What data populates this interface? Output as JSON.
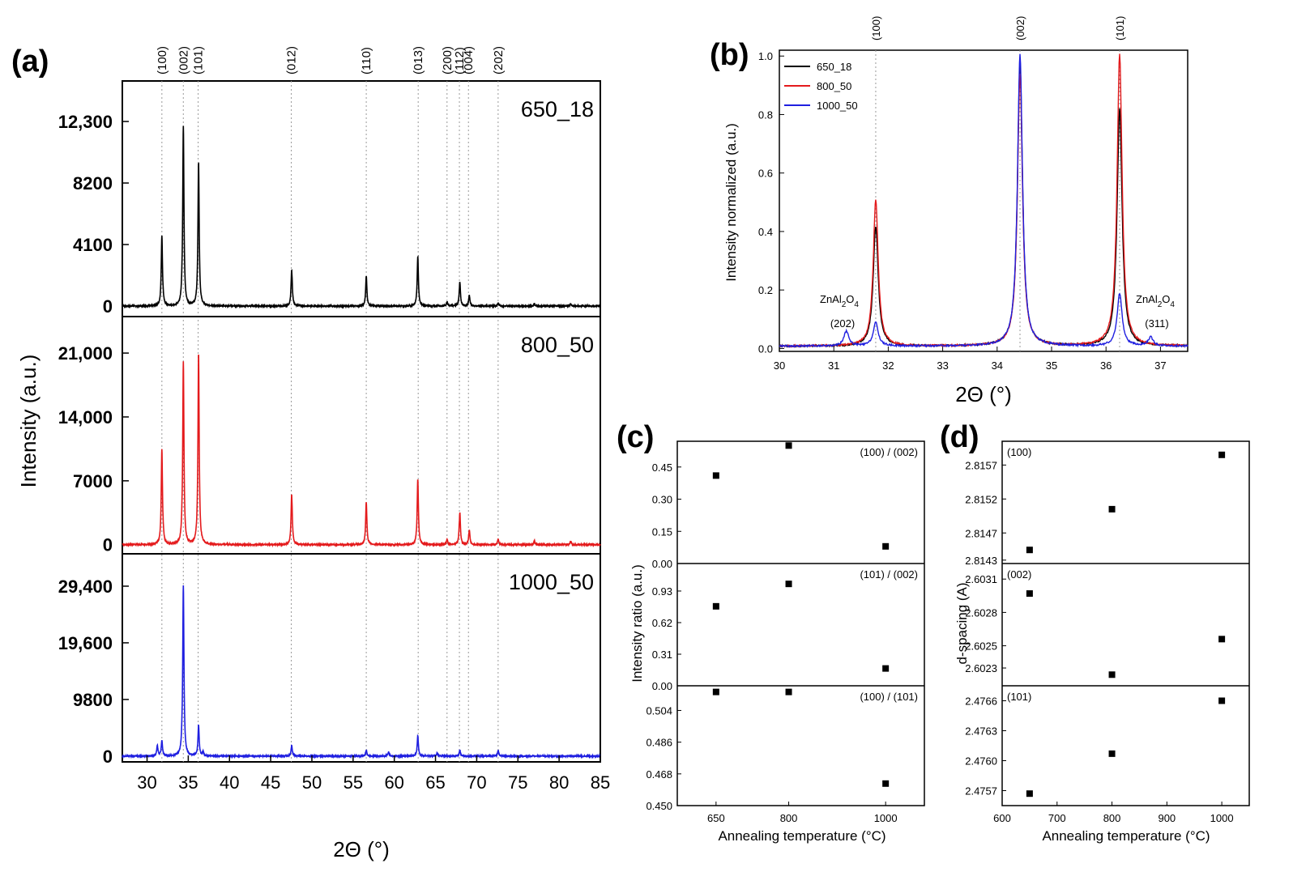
{
  "chart_data": [
    {
      "panel": "(a)",
      "type": "line",
      "xlabel": "2Θ (°)",
      "ylabel": "Intensity (a.u.)",
      "xlim": [
        27,
        85
      ],
      "xticks": [
        "30",
        "35",
        "40",
        "45",
        "50",
        "55",
        "60",
        "65",
        "70",
        "75",
        "80",
        "85"
      ],
      "hkl_labels": [
        {
          "label": "(100)",
          "x": 31.8
        },
        {
          "label": "(002)",
          "x": 34.4
        },
        {
          "label": "(101)",
          "x": 36.2
        },
        {
          "label": "(012)",
          "x": 47.5
        },
        {
          "label": "(110)",
          "x": 56.6
        },
        {
          "label": "(013)",
          "x": 62.9
        },
        {
          "label": "(200)",
          "x": 66.4
        },
        {
          "label": "(112)",
          "x": 67.9
        },
        {
          "label": "(004)",
          "x": 69.0
        },
        {
          "label": "(202)",
          "x": 72.6
        }
      ],
      "series": [
        {
          "name": "650_18",
          "color": "#000000",
          "ylim": [
            -700,
            15000
          ],
          "yticks": [
            "0",
            "4100",
            "8200",
            "12,300"
          ],
          "ytick_values": [
            0,
            4100,
            8200,
            12300
          ],
          "peaks": [
            [
              31.8,
              4700
            ],
            [
              34.4,
              12000
            ],
            [
              36.25,
              9600
            ],
            [
              47.55,
              2400
            ],
            [
              56.6,
              2000
            ],
            [
              62.85,
              3300
            ],
            [
              66.4,
              300
            ],
            [
              67.95,
              1600
            ],
            [
              69.1,
              700
            ],
            [
              72.6,
              200
            ],
            [
              77.0,
              150
            ],
            [
              81.4,
              150
            ]
          ]
        },
        {
          "name": "800_50",
          "color": "#e41a1c",
          "ylim": [
            -1000,
            25000
          ],
          "yticks": [
            "0",
            "7000",
            "14,000",
            "21,000"
          ],
          "ytick_values": [
            0,
            7000,
            14000,
            21000
          ],
          "peaks": [
            [
              31.8,
              10500
            ],
            [
              34.4,
              20000
            ],
            [
              36.25,
              21000
            ],
            [
              47.55,
              5500
            ],
            [
              56.6,
              4700
            ],
            [
              62.85,
              7200
            ],
            [
              66.4,
              600
            ],
            [
              67.95,
              3500
            ],
            [
              69.1,
              1600
            ],
            [
              72.6,
              600
            ],
            [
              77.0,
              400
            ],
            [
              81.4,
              400
            ]
          ]
        },
        {
          "name": "1000_50",
          "color": "#1f1fe0",
          "ylim": [
            -1000,
            35000
          ],
          "yticks": [
            "0",
            "9800",
            "19,600",
            "29,400"
          ],
          "ytick_values": [
            0,
            9800,
            19600,
            29400
          ],
          "peaks": [
            [
              31.25,
              1800
            ],
            [
              31.8,
              2700
            ],
            [
              34.4,
              29600
            ],
            [
              36.25,
              5300
            ],
            [
              36.8,
              700
            ],
            [
              47.55,
              1800
            ],
            [
              56.6,
              1000
            ],
            [
              59.3,
              700
            ],
            [
              62.85,
              3500
            ],
            [
              65.2,
              500
            ],
            [
              67.95,
              1000
            ],
            [
              72.6,
              1000
            ]
          ]
        }
      ]
    },
    {
      "panel": "(b)",
      "type": "line",
      "xlabel": "2Θ (°)",
      "ylabel": "Intensity normalized (a.u.)",
      "xlim": [
        30,
        37.5
      ],
      "ylim": [
        -0.01,
        1.02
      ],
      "xticks": [
        "30",
        "31",
        "32",
        "33",
        "34",
        "35",
        "36",
        "37"
      ],
      "yticks": [
        "0.0",
        "0.2",
        "0.4",
        "0.6",
        "0.8",
        "1.0"
      ],
      "hkl_labels": [
        {
          "label": "(100)",
          "x": 31.77
        },
        {
          "label": "(002)",
          "x": 34.42
        },
        {
          "label": "(101)",
          "x": 36.25
        }
      ],
      "annotations": [
        {
          "text": "ZnAl",
          "sub": "2",
          "text2": "O",
          "sub2": "4",
          "hkl": "(202)",
          "near_x": 31.2
        },
        {
          "text": "ZnAl",
          "sub": "2",
          "text2": "O",
          "sub2": "4",
          "hkl": "(311)",
          "near_x": 36.8
        }
      ],
      "legend_position": "top-left",
      "series": [
        {
          "name": "650_18",
          "color": "#000000",
          "peaks": [
            [
              31.77,
              0.41
            ],
            [
              34.42,
              0.97
            ],
            [
              36.25,
              0.81
            ]
          ]
        },
        {
          "name": "800_50",
          "color": "#e41a1c",
          "peaks": [
            [
              31.77,
              0.5
            ],
            [
              34.42,
              0.93
            ],
            [
              36.25,
              1.0
            ]
          ]
        },
        {
          "name": "1000_50",
          "color": "#1f1fe0",
          "peaks": [
            [
              31.23,
              0.05
            ],
            [
              31.77,
              0.08
            ],
            [
              34.42,
              1.0
            ],
            [
              36.25,
              0.18
            ],
            [
              36.82,
              0.03
            ]
          ]
        }
      ]
    },
    {
      "panel": "(c)",
      "type": "scatter",
      "xlabel": "Annealing temperature (°C)",
      "ylabel": "Intensity ratio (a.u.)",
      "xlim": [
        570,
        1080
      ],
      "xticks": [
        "650",
        "800",
        "1000"
      ],
      "subplots": [
        {
          "label": "(100) / (002)",
          "ylim": [
            0,
            0.57
          ],
          "yticks": [
            "0.00",
            "0.15",
            "0.30",
            "0.45"
          ],
          "ytick_values": [
            0,
            0.15,
            0.3,
            0.45
          ],
          "points": [
            [
              650,
              0.41
            ],
            [
              800,
              0.55
            ],
            [
              1000,
              0.08
            ]
          ]
        },
        {
          "label": "(101) / (002)",
          "ylim": [
            0,
            1.2
          ],
          "yticks": [
            "0.00",
            "0.31",
            "0.62",
            "0.93"
          ],
          "ytick_values": [
            0,
            0.31,
            0.62,
            0.93
          ],
          "points": [
            [
              650,
              0.78
            ],
            [
              800,
              1.0
            ],
            [
              1000,
              0.17
            ]
          ]
        },
        {
          "label": "(100) / (101)",
          "ylim": [
            0.45,
            0.518
          ],
          "yticks": [
            "0.450",
            "0.468",
            "0.486",
            "0.504"
          ],
          "ytick_values": [
            0.45,
            0.468,
            0.486,
            0.504
          ],
          "points": [
            [
              650,
              0.5145
            ],
            [
              800,
              0.5145
            ],
            [
              1000,
              0.4625
            ]
          ]
        }
      ]
    },
    {
      "panel": "(d)",
      "type": "scatter",
      "xlabel": "Annealing temperature (°C)",
      "ylabel": "d-spacing (A)",
      "xlim": [
        600,
        1050
      ],
      "xticks": [
        "600",
        "700",
        "800",
        "900",
        "1000"
      ],
      "subplots": [
        {
          "label": "(100)",
          "ylim": [
            2.81425,
            2.81605
          ],
          "yticks": [
            "2.8143",
            "2.8147",
            "2.8152",
            "2.8157"
          ],
          "ytick_values": [
            2.8143,
            2.8147,
            2.8152,
            2.8157
          ],
          "points": [
            [
              650,
              2.81445
            ],
            [
              800,
              2.81505
            ],
            [
              1000,
              2.81585
            ]
          ]
        },
        {
          "label": "(002)",
          "ylim": [
            2.60214,
            2.60324
          ],
          "yticks": [
            "2.6023",
            "2.6025",
            "2.6028",
            "2.6031"
          ],
          "ytick_values": [
            2.6023,
            2.6025,
            2.6028,
            2.6031
          ],
          "points": [
            [
              650,
              2.60297
            ],
            [
              800,
              2.60224
            ],
            [
              1000,
              2.60256
            ]
          ]
        },
        {
          "label": "(101)",
          "ylim": [
            2.47555,
            2.47675
          ],
          "yticks": [
            "2.4757",
            "2.4760",
            "2.4763",
            "2.4766"
          ],
          "ytick_values": [
            2.4757,
            2.476,
            2.4763,
            2.4766
          ],
          "points": [
            [
              650,
              2.47567
            ],
            [
              800,
              2.47607
            ],
            [
              1000,
              2.4766
            ]
          ]
        }
      ]
    }
  ]
}
